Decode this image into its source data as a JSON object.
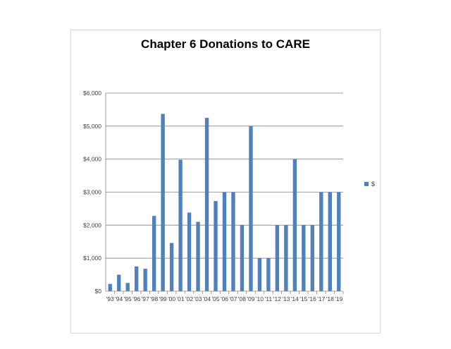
{
  "chart_data": {
    "type": "bar",
    "title": "Chapter 6 Donations to CARE",
    "xlabel": "",
    "ylabel": "",
    "categories": [
      "'93",
      "'94",
      "'95",
      "'96",
      "'97",
      "'98",
      "'99",
      "'00",
      "'01",
      "'02",
      "'03",
      "'04",
      "'05",
      "'06",
      "'07",
      "'08",
      "'09",
      "'10",
      "'11",
      "'12",
      "'13",
      "'14",
      "'15",
      "'16",
      "'17",
      "'18",
      "'19"
    ],
    "series": [
      {
        "name": "$",
        "color": "#4f81bd",
        "values": [
          220,
          500,
          250,
          750,
          680,
          2280,
          5370,
          1460,
          3980,
          2380,
          2100,
          5250,
          2730,
          3000,
          3000,
          2000,
          5000,
          1000,
          1000,
          2000,
          2000,
          4000,
          2000,
          2000,
          3000,
          3000,
          3000
        ]
      }
    ],
    "ylim": [
      0,
      6000
    ],
    "yticks": [
      0,
      1000,
      2000,
      3000,
      4000,
      5000,
      6000
    ],
    "ytick_labels": [
      "$0",
      "$1,000",
      "$2,000",
      "$3,000",
      "$4,000",
      "$5,000",
      "$6,000"
    ],
    "grid": true,
    "legend": "right"
  }
}
